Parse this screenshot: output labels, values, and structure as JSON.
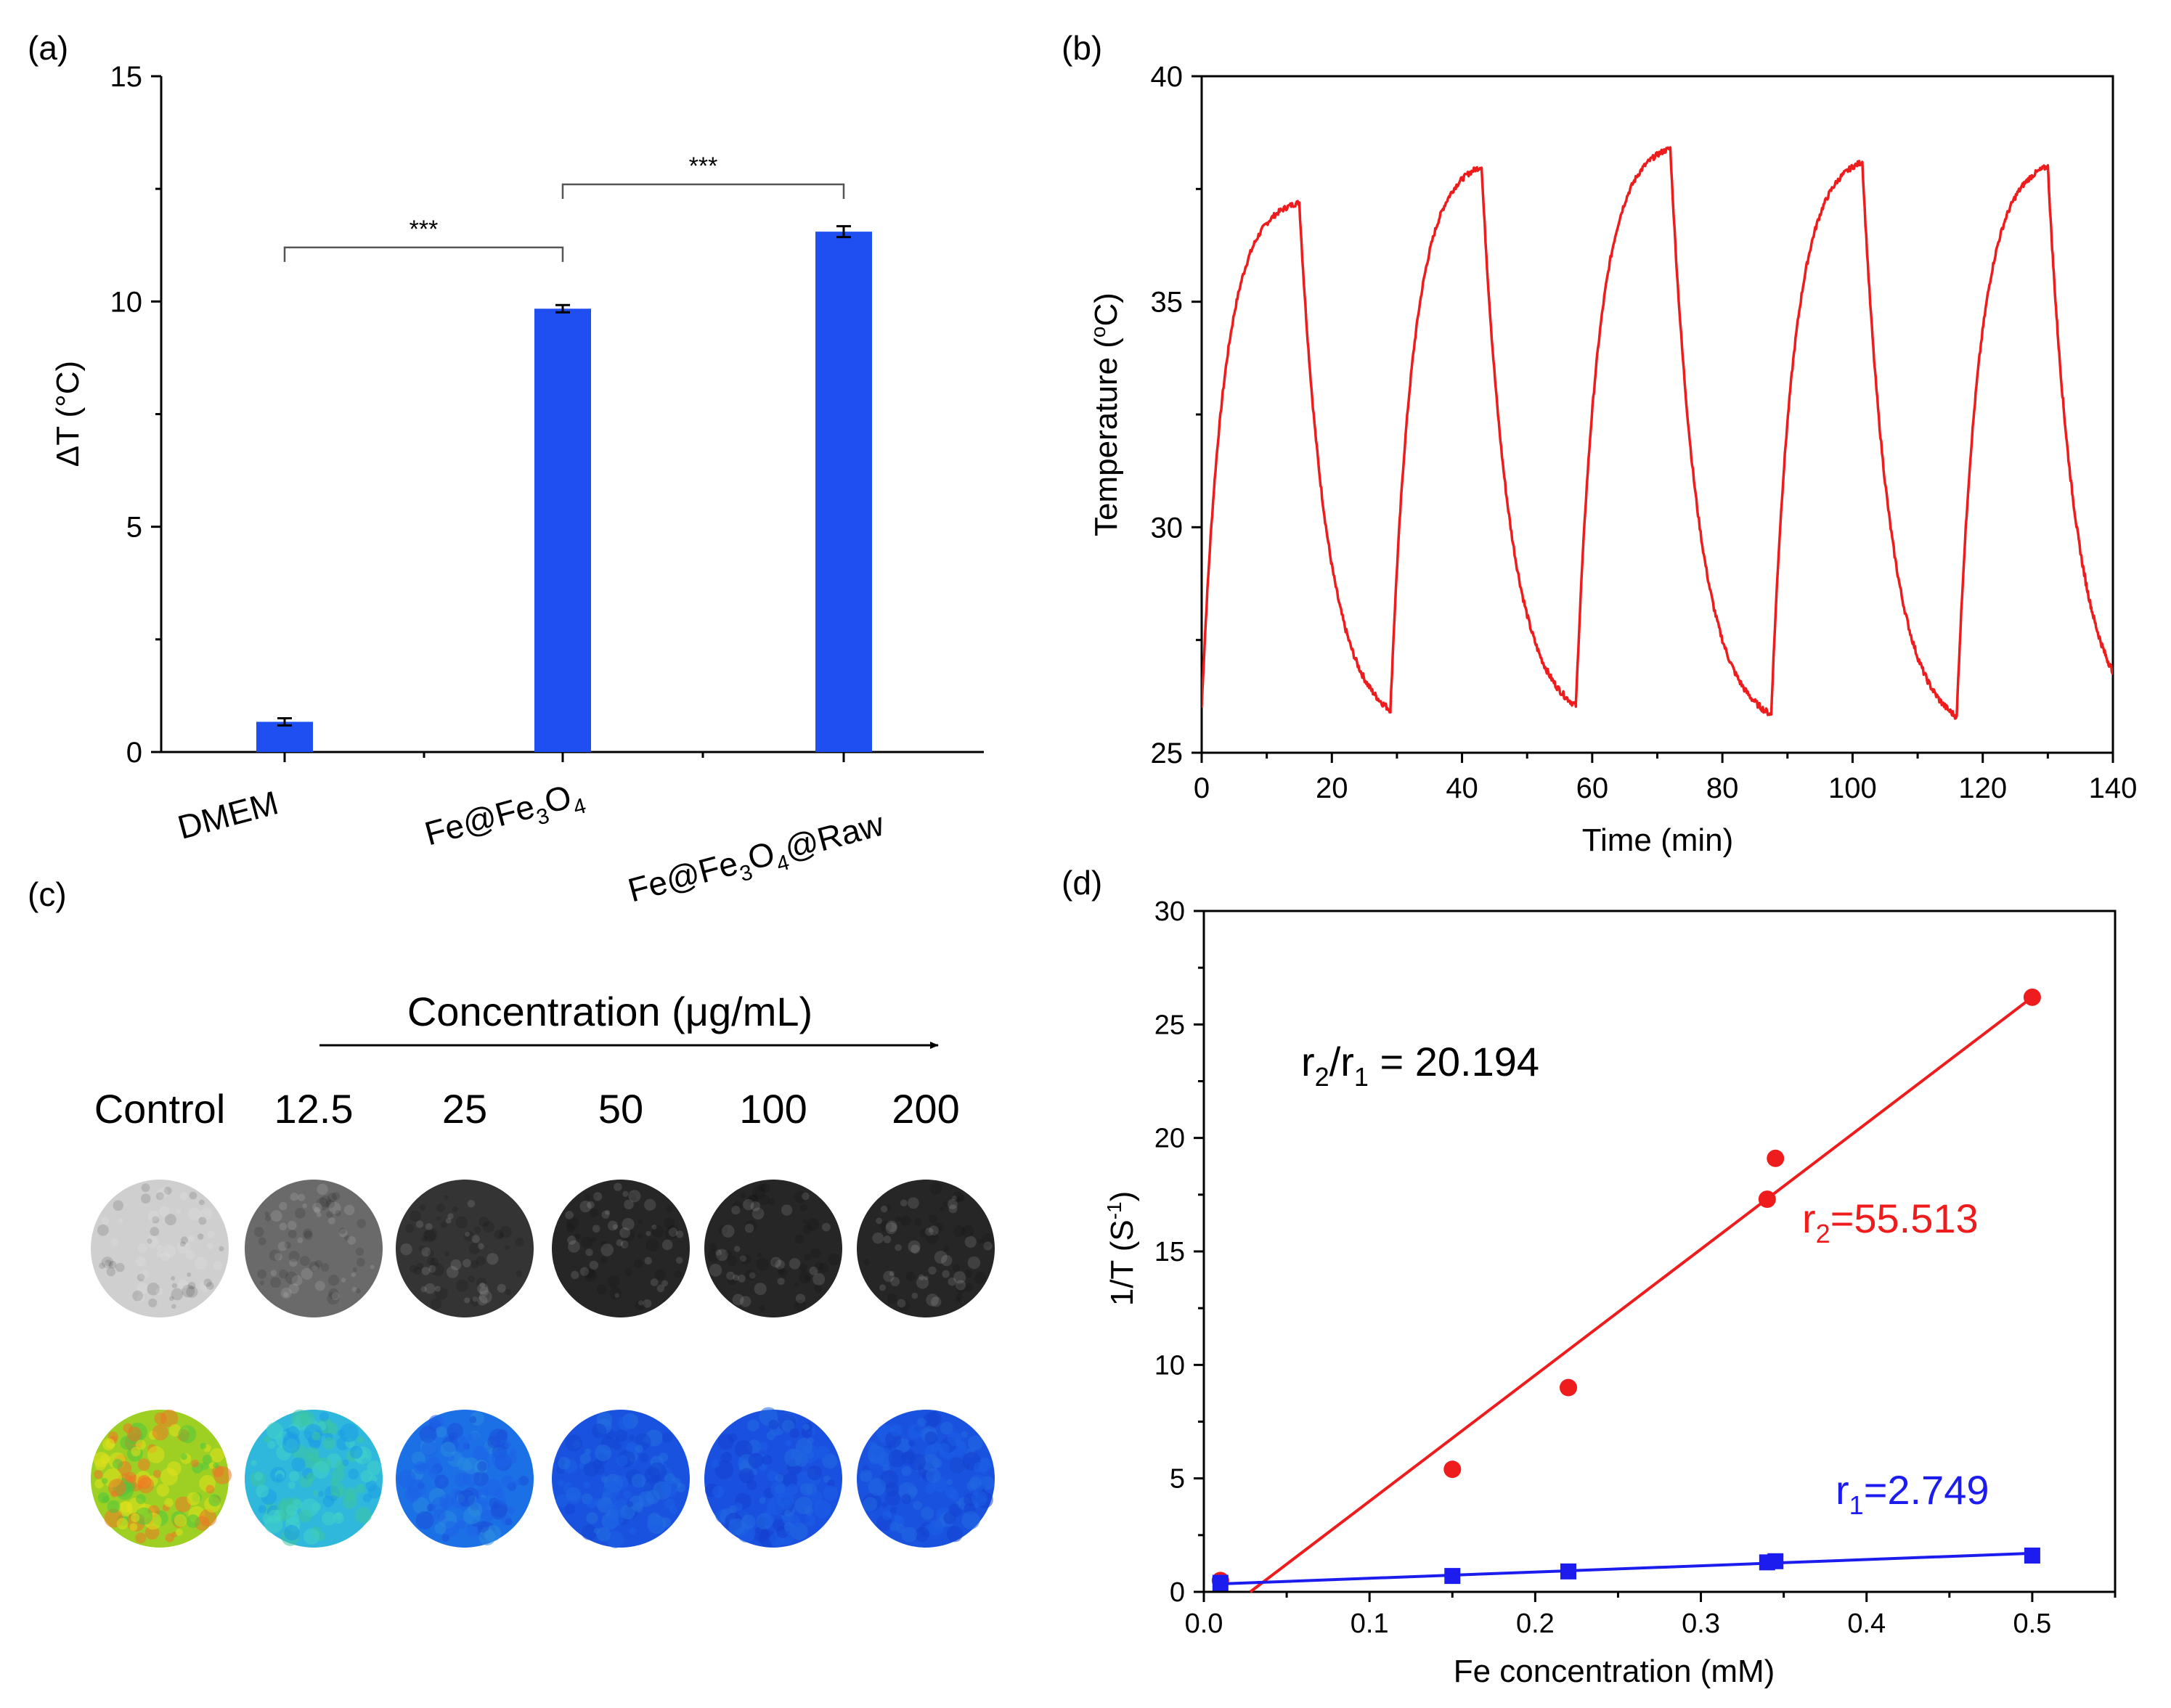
{
  "colors": {
    "bar": "#1f4ff0",
    "curve": "#ee1c1c",
    "r2": "#ee1c1c",
    "r1": "#1c1cee",
    "axis": "#000000",
    "bracket": "#555555"
  },
  "chart_data": [
    {
      "panel": "(a)",
      "type": "bar",
      "ylabel": "ΔT (°C)",
      "ylim": [
        0,
        15
      ],
      "yticks": [
        0,
        5,
        10,
        15
      ],
      "categories": [
        "DMEM",
        "Fe@Fe3O4",
        "Fe@Fe3O4@Raw"
      ],
      "values": [
        0.67,
        9.84,
        11.55
      ],
      "errors": [
        0.08,
        0.08,
        0.12
      ],
      "significance": [
        {
          "from": 0,
          "to": 1,
          "label": "***",
          "y": 11.2
        },
        {
          "from": 1,
          "to": 2,
          "label": "***",
          "y": 12.6
        }
      ]
    },
    {
      "panel": "(b)",
      "type": "line",
      "xlabel": "Time (min)",
      "ylabel": "Temperature (°C)",
      "xlim": [
        0,
        140
      ],
      "ylim": [
        25,
        40
      ],
      "xticks": [
        0,
        20,
        40,
        60,
        80,
        100,
        120,
        140
      ],
      "yticks": [
        25,
        30,
        35,
        40
      ],
      "cycles": [
        {
          "start": 0,
          "base": 26.0,
          "peak_time": 15,
          "peak": 37.2,
          "end": 29,
          "end_temp": 25.95
        },
        {
          "start": 29,
          "base": 25.95,
          "peak_time": 43,
          "peak": 38.0,
          "end": 57.5,
          "end_temp": 26.05
        },
        {
          "start": 57.5,
          "base": 26.05,
          "peak_time": 72,
          "peak": 38.4,
          "end": 87.5,
          "end_temp": 25.85
        },
        {
          "start": 87.5,
          "base": 25.85,
          "peak_time": 101.5,
          "peak": 38.1,
          "end": 116,
          "end_temp": 25.8
        },
        {
          "start": 116,
          "base": 25.8,
          "peak_time": 130,
          "peak": 38.0,
          "end": 140,
          "end_temp": 26.8
        }
      ]
    },
    {
      "panel": "(c)",
      "type": "table",
      "title": "Concentration (μg/mL)",
      "columns": [
        "Control",
        "12.5",
        "25",
        "50",
        "100",
        "200"
      ],
      "gray_levels": [
        "#cfcfcf",
        "#6a6a6a",
        "#343434",
        "#262626",
        "#262626",
        "#262626"
      ],
      "color_maps": [
        [
          "#9ed024",
          "#e1e01a",
          "#4fc63a",
          "#f07424"
        ],
        [
          "#2fb8dc",
          "#41d2c8",
          "#1e9ce6",
          "#3cc4a0"
        ],
        [
          "#1c70e6",
          "#1e62e8",
          "#2a8ae0",
          "#1a50d8"
        ],
        [
          "#1a52e0",
          "#1c60e6",
          "#1446d2",
          "#2370e0"
        ],
        [
          "#1a50e0",
          "#1c5ee6",
          "#1440d0",
          "#236ae0"
        ],
        [
          "#1a52e0",
          "#1c5ee6",
          "#1442d0",
          "#2368e0"
        ]
      ]
    },
    {
      "panel": "(d)",
      "type": "scatter",
      "xlabel": "Fe concentration (mM)",
      "ylabel": "1/T (S⁻¹)",
      "xlim": [
        0,
        0.55
      ],
      "ylim": [
        0,
        30
      ],
      "xticks": [
        "0.0",
        "0.1",
        "0.2",
        "0.3",
        "0.4",
        "0.5"
      ],
      "yticks": [
        0,
        5,
        10,
        15,
        20,
        25,
        30
      ],
      "series": [
        {
          "name": "r2",
          "marker": "circle",
          "x": [
            0.01,
            0.15,
            0.22,
            0.34,
            0.345,
            0.5
          ],
          "y": [
            0.5,
            5.4,
            9.0,
            17.3,
            19.1,
            26.2
          ],
          "fit": {
            "x": [
              0.028,
              0.5
            ],
            "y": [
              0,
              26.2
            ]
          }
        },
        {
          "name": "r1",
          "marker": "square",
          "x": [
            0.01,
            0.15,
            0.22,
            0.34,
            0.345,
            0.5
          ],
          "y": [
            0.4,
            0.7,
            0.9,
            1.3,
            1.35,
            1.6
          ],
          "fit": {
            "x": [
              0.01,
              0.5
            ],
            "y": [
              0.35,
              1.7
            ]
          }
        }
      ]
    }
  ],
  "panel_labels": {
    "a": "(a)",
    "b": "(b)",
    "c": "(c)",
    "d": "(d)"
  },
  "text": {
    "a_ylabel": "ΔT (°C)",
    "a_cat": [
      {
        "pre": "DMEM",
        "sub1": "",
        "mid": "",
        "sub2": "",
        "post": ""
      },
      {
        "pre": "Fe@Fe",
        "sub1": "3",
        "mid": "O",
        "sub2": "4",
        "post": ""
      },
      {
        "pre": "Fe@Fe",
        "sub1": "3",
        "mid": "O",
        "sub2": "4",
        "post": "@Raw"
      }
    ],
    "a_sig": "***",
    "b_xlabel": "Time (min)",
    "b_ylabel_pre": "Temperature (",
    "b_ylabel_deg": "o",
    "b_ylabel_post": "C)",
    "c_concentration": "Concentration (μg/mL)",
    "d_xlabel": "Fe concentration (mM)",
    "d_ylabel_pre": "1/T (S",
    "d_ylabel_sup": "-1",
    "d_ylabel_post": ")",
    "ratio": {
      "r": "r",
      "s2": "2",
      "slash": "/r",
      "s1": "1",
      "val": " = 20.194"
    },
    "r2_label": {
      "r": "r",
      "sub": "2",
      "val": "=55.513"
    },
    "r1_label": {
      "r": "r",
      "sub": "1",
      "val": "=2.749"
    }
  }
}
